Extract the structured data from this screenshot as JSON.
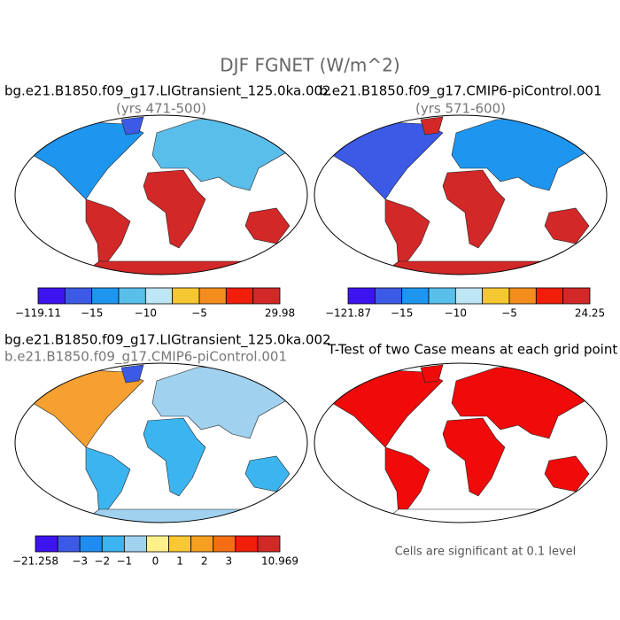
{
  "title": "DJF FGNET (W/m^2)",
  "panels": [
    {
      "title": "bg.e21.B1850.f09_g17.LIGtransient_125.0ka.002",
      "subtitle": "(yrs 471-500)",
      "colorbar": {
        "colors": [
          "#3c14f0",
          "#3c5ae6",
          "#1e96f0",
          "#5abeeb",
          "#bee6f5",
          "#f5c832",
          "#f58c1e",
          "#f01e0a",
          "#d22828"
        ],
        "labels": [
          "−119.11",
          "−15",
          "−10",
          "−5",
          "29.98"
        ]
      }
    },
    {
      "title": "b.e21.B1850.f09_g17.CMIP6-piControl.001",
      "subtitle": "(yrs 571-600)",
      "colorbar": {
        "colors": [
          "#3c14f0",
          "#3c5ae6",
          "#1e96f0",
          "#5abeeb",
          "#bee6f5",
          "#f5c832",
          "#f58c1e",
          "#f01e0a",
          "#d22828"
        ],
        "labels": [
          "−121.87",
          "−15",
          "−10",
          "−5",
          "24.25"
        ]
      }
    },
    {
      "title": "bg.e21.B1850.f09_g17.LIGtransient_125.0ka.002",
      "subtitle": "b.e21.B1850.f09_g17.CMIP6-piControl.001",
      "colorbar": {
        "colors": [
          "#3c14f0",
          "#3c5ae6",
          "#1e8cf0",
          "#3cb4f0",
          "#a0d2f0",
          "#fff08c",
          "#fac832",
          "#f5a01e",
          "#f56e14",
          "#f01e0a",
          "#d22828"
        ],
        "labels": [
          "−21.258",
          "−3",
          "−2",
          "−1",
          "0",
          "1",
          "2",
          "3",
          "10.969"
        ]
      }
    },
    {
      "title": "T-Test of two Case means at each grid point",
      "note": "Cells are significant at 0.1 level"
    }
  ]
}
